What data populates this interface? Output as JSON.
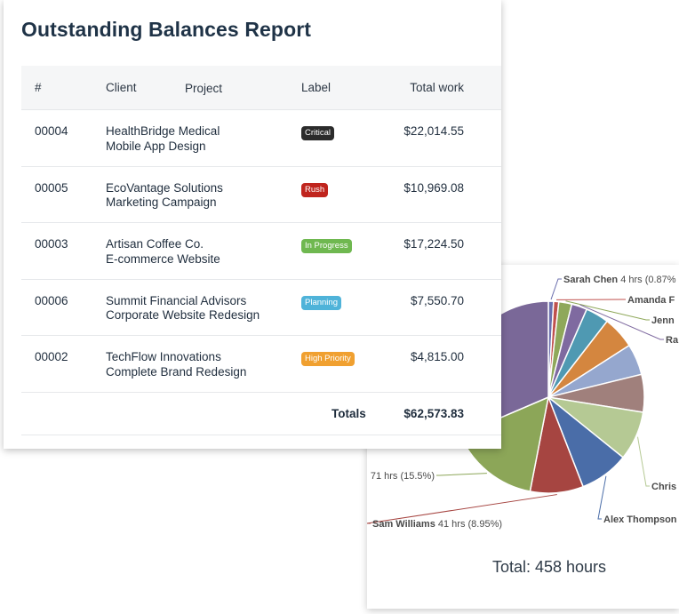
{
  "report": {
    "title": "Outstanding Balances Report",
    "columns": {
      "num": "#",
      "client": "Client",
      "project": "Project",
      "label": "Label",
      "total": "Total work"
    },
    "rows": [
      {
        "num": "00004",
        "client": "HealthBridge Medical",
        "project": "Mobile App Design",
        "label": "Critical",
        "label_color": "#2b2b2b",
        "total": "$22,014.55"
      },
      {
        "num": "00005",
        "client": "EcoVantage Solutions",
        "project": "Marketing Campaign",
        "label": "Rush",
        "label_color": "#c0251e",
        "total": "$10,969.08"
      },
      {
        "num": "00003",
        "client": "Artisan Coffee Co.",
        "project": "E-commerce Website",
        "label": "In Progress",
        "label_color": "#6fb850",
        "total": "$17,224.50"
      },
      {
        "num": "00006",
        "client": "Summit Financial Advisors",
        "project": "Corporate Website Redesign",
        "label": "Planning",
        "label_color": "#4fb3d9",
        "total": "$7,550.70"
      },
      {
        "num": "00002",
        "client": "TechFlow Innovations",
        "project": "Complete Brand Redesign",
        "label": "High Priority",
        "label_color": "#f0a030",
        "total": "$4,815.00"
      }
    ],
    "totals_label": "Totals",
    "totals_value": "$62,573.83"
  },
  "chart_data": {
    "type": "pie",
    "unit": "hrs",
    "total_text": "Total: 458 hours",
    "slices": [
      {
        "label": "Sarah Chen",
        "hours": 4,
        "percent": "0.87%",
        "color": "#6b6fae"
      },
      {
        "label": "Amanda F",
        "hours": 4,
        "color": "#c0504d"
      },
      {
        "label": "Jenn",
        "hours": 10,
        "color": "#8fa85a"
      },
      {
        "label": "Ra",
        "hours": 12,
        "color": "#7f6aa0"
      },
      {
        "label": "",
        "hours": 18,
        "color": "#4f99b2"
      },
      {
        "label": "",
        "hours": 25,
        "color": "#d4863f"
      },
      {
        "label": "",
        "hours": 24,
        "color": "#95a7ce"
      },
      {
        "label": "",
        "hours": 29,
        "color": "#a0807c"
      },
      {
        "label": "Chris",
        "hours": 38,
        "color": "#b5c994"
      },
      {
        "label": "Alex Thompson",
        "hours": 38,
        "color": "#4a6da8"
      },
      {
        "label": "Sam Williams",
        "hours": 41,
        "percent": "8.95%",
        "color": "#a64541"
      },
      {
        "label": "",
        "hours": 71,
        "percent": "15.5%",
        "color": "#8ca658"
      },
      {
        "label": "",
        "hours": 144,
        "color": "#7a6898"
      }
    ],
    "visible_labels": [
      {
        "name": "Sarah Chen",
        "value": "4 hrs (0.87%"
      },
      {
        "name": "Amanda F",
        "value": ""
      },
      {
        "name": "Jenn",
        "value": ""
      },
      {
        "name": "Ra",
        "value": ""
      },
      {
        "name": "Chris",
        "value": ""
      },
      {
        "name": "Alex Thompson",
        "value": ""
      },
      {
        "name": "Sam Williams",
        "value": "41 hrs (8.95%)"
      },
      {
        "name": "",
        "value": "71 hrs (15.5%)"
      }
    ]
  }
}
